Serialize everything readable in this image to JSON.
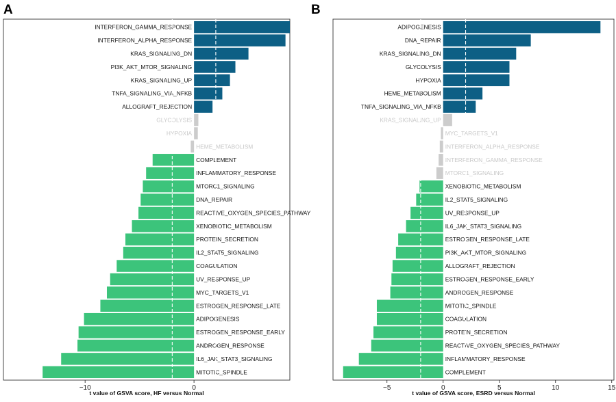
{
  "chart_data": [
    {
      "type": "bar",
      "orientation": "horizontal",
      "panel_letter": "A",
      "xlabel": "t value of GSVA score, HF versus Normal",
      "xlim": [
        -17.5,
        8.8
      ],
      "xticks": [
        -10,
        0
      ],
      "threshold": 2,
      "colors": {
        "up": "#0d5f85",
        "down": "#3cc47b",
        "ns": "#cccccc"
      },
      "bars": [
        {
          "label": "INTERFERON_GAMMA_RESPONSE",
          "value": 8.8,
          "group": "up"
        },
        {
          "label": "INTERFERON_ALPHA_RESPONSE",
          "value": 8.4,
          "group": "up"
        },
        {
          "label": "KRAS_SIGNALING_DN",
          "value": 5.0,
          "group": "up"
        },
        {
          "label": "PI3K_AKT_MTOR_SIGNALING",
          "value": 3.8,
          "group": "up"
        },
        {
          "label": "KRAS_SIGNALING_UP",
          "value": 3.3,
          "group": "up"
        },
        {
          "label": "TNFA_SIGNALING_VIA_NFKB",
          "value": 2.6,
          "group": "up"
        },
        {
          "label": "ALLOGRAFT_REJECTION",
          "value": 1.7,
          "group": "up"
        },
        {
          "label": "GLYCOLYSIS",
          "value": 0.4,
          "group": "ns"
        },
        {
          "label": "HYPOXIA",
          "value": 0.35,
          "group": "ns"
        },
        {
          "label": "HEME_METABOLISM",
          "value": -0.3,
          "group": "ns"
        },
        {
          "label": "COMPLEMENT",
          "value": -3.8,
          "group": "down"
        },
        {
          "label": "INFLAMMATORY_RESPONSE",
          "value": -4.4,
          "group": "down"
        },
        {
          "label": "MTORC1_SIGNALING",
          "value": -4.7,
          "group": "down"
        },
        {
          "label": "DNA_REPAIR",
          "value": -4.9,
          "group": "down"
        },
        {
          "label": "REACTIVE_OXYGEN_SPECIES_PATHWAY",
          "value": -5.1,
          "group": "down"
        },
        {
          "label": "XENOBIOTIC_METABOLISM",
          "value": -5.7,
          "group": "down"
        },
        {
          "label": "PROTEIN_SECRETION",
          "value": -6.3,
          "group": "down"
        },
        {
          "label": "IL2_STAT5_SIGNALING",
          "value": -6.5,
          "group": "down"
        },
        {
          "label": "COAGULATION",
          "value": -7.1,
          "group": "down"
        },
        {
          "label": "UV_RESPONSE_UP",
          "value": -7.7,
          "group": "down"
        },
        {
          "label": "MYC_TARGETS_V1",
          "value": -8.0,
          "group": "down"
        },
        {
          "label": "ESTROGEN_RESPONSE_LATE",
          "value": -8.6,
          "group": "down"
        },
        {
          "label": "ADIPOGENESIS",
          "value": -10.1,
          "group": "down"
        },
        {
          "label": "ESTROGEN_RESPONSE_EARLY",
          "value": -10.6,
          "group": "down"
        },
        {
          "label": "ANDROGEN_RESPONSE",
          "value": -10.7,
          "group": "down"
        },
        {
          "label": "IL6_JAK_STAT3_SIGNALING",
          "value": -12.2,
          "group": "down"
        },
        {
          "label": "MITOTIC_SPINDLE",
          "value": -13.9,
          "group": "down"
        }
      ]
    },
    {
      "type": "bar",
      "orientation": "horizontal",
      "panel_letter": "B",
      "xlabel": "t value of GSVA score, ESRD versus Normal",
      "xlim": [
        -9.8,
        15.2
      ],
      "xticks": [
        -5,
        0,
        5,
        10,
        15
      ],
      "threshold": 2,
      "colors": {
        "up": "#0d5f85",
        "down": "#3cc47b",
        "ns": "#cccccc"
      },
      "bars": [
        {
          "label": "ADIPOGENESIS",
          "value": 14.0,
          "group": "up"
        },
        {
          "label": "DNA_REPAIR",
          "value": 7.8,
          "group": "up"
        },
        {
          "label": "KRAS_SIGNALING_DN",
          "value": 6.5,
          "group": "up"
        },
        {
          "label": "GLYCOLYSIS",
          "value": 5.9,
          "group": "up"
        },
        {
          "label": "HYPOXIA",
          "value": 5.9,
          "group": "up"
        },
        {
          "label": "HEME_METABOLISM",
          "value": 3.5,
          "group": "up"
        },
        {
          "label": "TNFA_SIGNALING_VIA_NFKB",
          "value": 2.9,
          "group": "up"
        },
        {
          "label": "KRAS_SIGNALING_UP",
          "value": 0.8,
          "group": "ns"
        },
        {
          "label": "MYC_TARGETS_V1",
          "value": -0.2,
          "group": "ns"
        },
        {
          "label": "INTERFERON_ALPHA_RESPONSE",
          "value": -0.3,
          "group": "ns"
        },
        {
          "label": "INTERFERON_GAMMA_RESPONSE",
          "value": -0.4,
          "group": "ns"
        },
        {
          "label": "MTORC1_SIGNALING",
          "value": -0.6,
          "group": "ns"
        },
        {
          "label": "XENOBIOTIC_METABOLISM",
          "value": -2.1,
          "group": "down"
        },
        {
          "label": "IL2_STAT5_SIGNALING",
          "value": -2.4,
          "group": "down"
        },
        {
          "label": "UV_RESPONSE_UP",
          "value": -2.9,
          "group": "down"
        },
        {
          "label": "IL6_JAK_STAT3_SIGNALING",
          "value": -3.3,
          "group": "down"
        },
        {
          "label": "ESTROGEN_RESPONSE_LATE",
          "value": -4.0,
          "group": "down"
        },
        {
          "label": "PI3K_AKT_MTOR_SIGNALING",
          "value": -4.2,
          "group": "down"
        },
        {
          "label": "ALLOGRAFT_REJECTION",
          "value": -4.5,
          "group": "down"
        },
        {
          "label": "ESTROGEN_RESPONSE_EARLY",
          "value": -4.6,
          "group": "down"
        },
        {
          "label": "ANDROGEN_RESPONSE",
          "value": -4.7,
          "group": "down"
        },
        {
          "label": "MITOTIC_SPINDLE",
          "value": -5.9,
          "group": "down"
        },
        {
          "label": "COAGULATION",
          "value": -5.9,
          "group": "down"
        },
        {
          "label": "PROTEIN_SECRETION",
          "value": -6.2,
          "group": "down"
        },
        {
          "label": "REACTIVE_OXYGEN_SPECIES_PATHWAY",
          "value": -6.4,
          "group": "down"
        },
        {
          "label": "INFLAMMATORY_RESPONSE",
          "value": -7.5,
          "group": "down"
        },
        {
          "label": "COMPLEMENT",
          "value": -8.9,
          "group": "down"
        }
      ]
    }
  ]
}
